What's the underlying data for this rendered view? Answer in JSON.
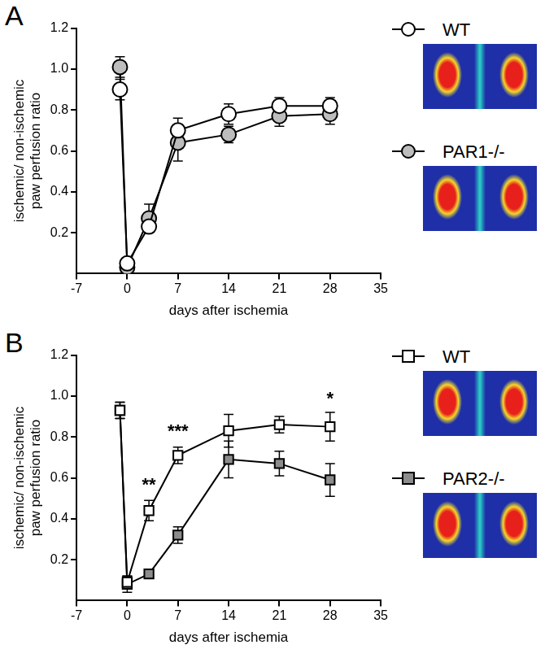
{
  "chart_data": [
    {
      "panel": "A",
      "type": "line",
      "x_label": "days after ischemia",
      "y_label": [
        "ischemic/ non-ischemic",
        "paw perfusion ratio"
      ],
      "x": [
        -1,
        0,
        3,
        7,
        14,
        21,
        28
      ],
      "xlim": [
        -7,
        35
      ],
      "xticks": [
        -7,
        0,
        7,
        14,
        21,
        28,
        35
      ],
      "ylim": [
        0,
        1.2
      ],
      "yticks": [
        0.2,
        0.4,
        0.6,
        0.8,
        {
          "value": 1,
          "label": "1.0"
        },
        1.2
      ],
      "grid": false,
      "legend": "right",
      "series": [
        {
          "name": "WT",
          "color": "#ffffff",
          "marker": "circle",
          "values": [
            0.9,
            0.05,
            0.23,
            0.7,
            0.78,
            0.82,
            0.82
          ],
          "errors": [
            0.05,
            0.02,
            0.03,
            0.06,
            0.05,
            0.04,
            0.04
          ]
        },
        {
          "name": "PAR1-/-",
          "color": "#bdbdbd",
          "marker": "circle",
          "values": [
            1.01,
            0.03,
            0.27,
            0.64,
            0.68,
            0.77,
            0.78
          ],
          "errors": [
            0.05,
            0.02,
            0.07,
            0.09,
            0.04,
            0.05,
            0.05
          ]
        }
      ],
      "annotations": []
    },
    {
      "panel": "B",
      "type": "line",
      "x_label": "days after ischemia",
      "y_label": [
        "ischemic/ non-ischemic",
        "paw perfusion ratio"
      ],
      "x": [
        -1,
        0,
        3,
        7,
        14,
        21,
        28
      ],
      "xlim": [
        -7,
        35
      ],
      "xticks": [
        -7,
        0,
        7,
        14,
        21,
        28,
        35
      ],
      "ylim": [
        0,
        1.2
      ],
      "yticks": [
        0.2,
        0.4,
        0.6,
        0.8,
        {
          "value": 1,
          "label": "1.0"
        },
        1.2
      ],
      "grid": false,
      "legend": "right",
      "series": [
        {
          "name": "WT",
          "color": "#ffffff",
          "marker": "square",
          "values": [
            0.93,
            0.09,
            0.44,
            0.71,
            0.83,
            0.86,
            0.85
          ],
          "errors": [
            0.04,
            0.03,
            0.05,
            0.04,
            0.08,
            0.04,
            0.07
          ]
        },
        {
          "name": "PAR2-/-",
          "color": "#8c8c8c",
          "marker": "square",
          "values": [
            0.93,
            0.08,
            0.13,
            0.32,
            0.69,
            0.67,
            0.59
          ],
          "errors": [
            0.04,
            0.04,
            0.02,
            0.04,
            0.09,
            0.06,
            0.08
          ]
        }
      ],
      "annotations": [
        {
          "text": "**",
          "x": 3,
          "y": 0.52
        },
        {
          "text": "***",
          "x": 7,
          "y": 0.78
        },
        {
          "text": "*",
          "x": 28,
          "y": 0.94
        }
      ]
    }
  ]
}
